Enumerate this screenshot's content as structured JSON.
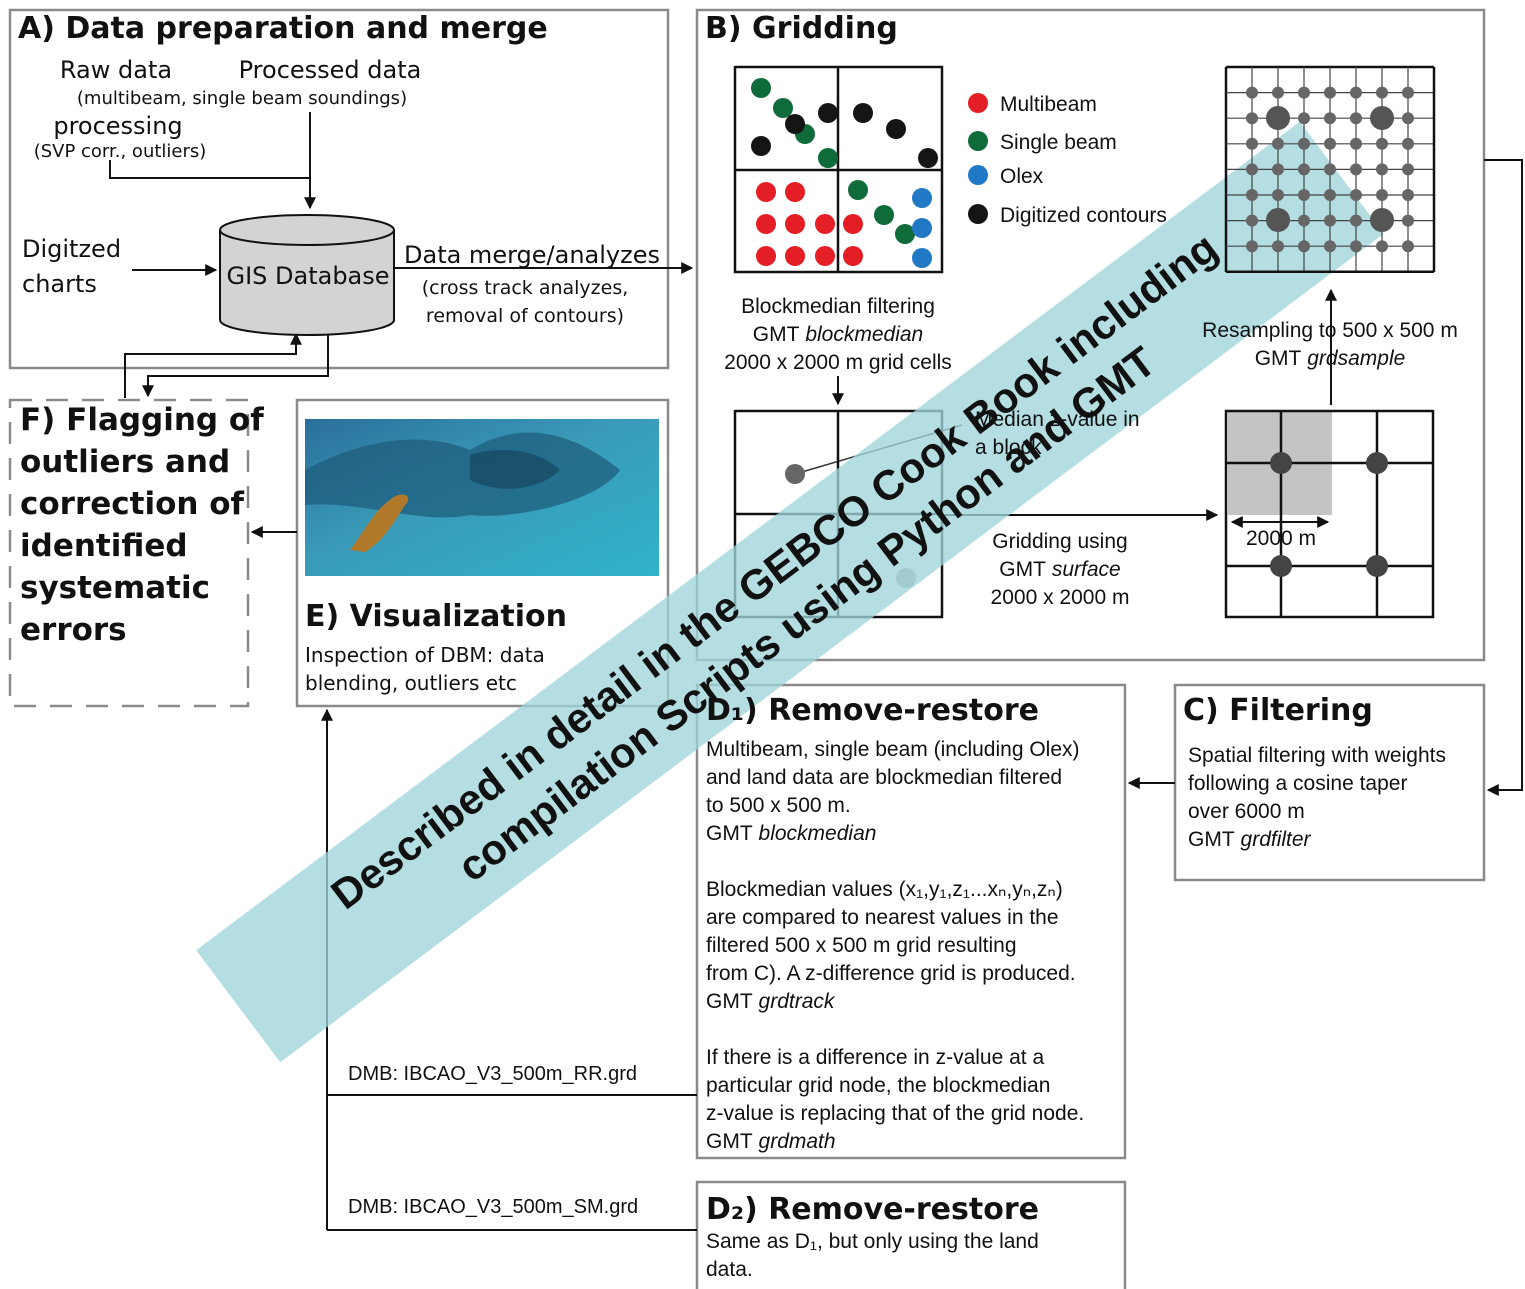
{
  "a": {
    "title": "A) Data preparation and merge",
    "raw": "Raw data",
    "processed": "Processed data",
    "sources": "(multibeam, single beam soundings)",
    "processing": "processing",
    "processing_note": "(SVP corr., outliers)",
    "charts": [
      "Digitzed",
      "charts"
    ],
    "database": "GIS Database",
    "merge": "Data merge/analyzes",
    "merge_note": [
      "(cross track analyzes,",
      "removal of contours)"
    ]
  },
  "b": {
    "title": "B) Gridding",
    "legend": [
      {
        "label": "Multibeam",
        "color": "#e31e24"
      },
      {
        "label": "Single beam",
        "color": "#0f6b3a"
      },
      {
        "label": "Olex",
        "color": "#2178c4"
      },
      {
        "label": "Digitized contours",
        "color": "#151515"
      }
    ],
    "blockmedian": [
      "Blockmedian filtering",
      {
        "text": "GMT",
        "tool": "blockmedian"
      },
      "2000 x 2000 m grid cells"
    ],
    "median": [
      "Median z-value in",
      "a block"
    ],
    "surface": [
      "Gridding using",
      {
        "text": "GMT",
        "tool": "surface"
      },
      "2000 x 2000 m"
    ],
    "cell": "2000 m",
    "resample": [
      "Resampling to 500 x 500 m",
      {
        "text": "GMT",
        "tool": "grdsample"
      }
    ]
  },
  "c": {
    "title": "C) Filtering",
    "body": [
      "Spatial filtering with weights",
      "following a cosine taper",
      "over 6000 m",
      {
        "text": "GMT",
        "tool": "grdfilter"
      }
    ]
  },
  "d1": {
    "title": "D₁) Remove-restore",
    "paragraphs": [
      [
        "Multibeam, single beam (including Olex)",
        "and land data are blockmedian filtered",
        "to 500 x 500 m.",
        {
          "text": "GMT",
          "tool": "blockmedian"
        }
      ],
      [
        "Blockmedian values (x₁,y₁,z₁...xₙ,yₙ,zₙ)",
        "are compared to nearest values in the",
        "filtered 500 x 500 m grid resulting",
        "from C). A z-difference grid is produced.",
        {
          "text": "GMT",
          "tool": "grdtrack"
        }
      ],
      [
        "If there is a difference in z-value at a",
        "particular grid node, the blockmedian",
        "z-value is replacing that of the grid node.",
        {
          "text": "GMT",
          "tool": "grdmath"
        }
      ]
    ]
  },
  "d2": {
    "title": "D₂) Remove-restore",
    "body": [
      "Same as D₁, but only using the land",
      "data."
    ]
  },
  "e": {
    "title": "E) Visualization",
    "body": [
      "Inspection of DBM: data",
      "blending, outliers etc"
    ]
  },
  "f": {
    "title": [
      "F) Flagging of",
      "outliers and",
      "correction of",
      "identified",
      "systematic",
      "errors"
    ]
  },
  "outputs": [
    "DMB: IBCAO_V3_500m_RR.grd",
    "DMB: IBCAO_V3_500m_SM.grd"
  ],
  "banner": [
    "Described in detail in the GEBCO Cook Book including",
    "compilation Scripts using Python and GMT"
  ]
}
